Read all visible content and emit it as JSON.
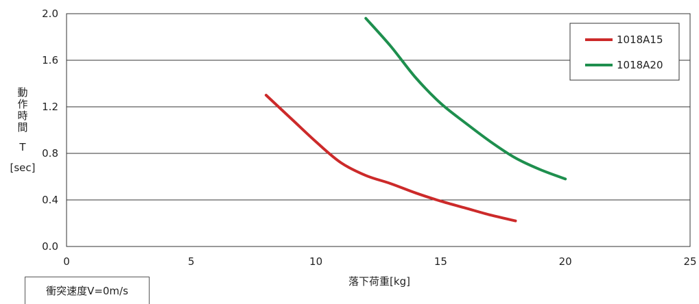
{
  "chart_data": {
    "type": "line",
    "title": "",
    "xlabel": "落下荷重[kg]",
    "ylabel_lines": [
      "動",
      "作",
      "時",
      "間",
      "T",
      "[sec]"
    ],
    "xlim": [
      0,
      25
    ],
    "ylim": [
      0,
      2.0
    ],
    "x_ticks": [
      "0",
      "5",
      "10",
      "15",
      "20",
      "25"
    ],
    "y_ticks": [
      "0.0",
      "0.4",
      "0.8",
      "1.2",
      "1.6",
      "2.0"
    ],
    "grid": "horizontal",
    "legend_position": "top-right",
    "series": [
      {
        "name": "1018A15",
        "color": "#cc2a2a",
        "points": [
          [
            8,
            1.3
          ],
          [
            9,
            1.1
          ],
          [
            10,
            0.9
          ],
          [
            11,
            0.72
          ],
          [
            12,
            0.61
          ],
          [
            13,
            0.54
          ],
          [
            14,
            0.46
          ],
          [
            15,
            0.39
          ],
          [
            16,
            0.33
          ],
          [
            17,
            0.27
          ],
          [
            18,
            0.22
          ]
        ]
      },
      {
        "name": "1018A20",
        "color": "#1e8f4e",
        "points": [
          [
            12,
            1.96
          ],
          [
            13,
            1.72
          ],
          [
            14,
            1.45
          ],
          [
            15,
            1.23
          ],
          [
            16,
            1.06
          ],
          [
            17,
            0.9
          ],
          [
            18,
            0.76
          ],
          [
            19,
            0.66
          ],
          [
            20,
            0.58
          ]
        ]
      }
    ]
  },
  "condition_label": "衝突速度V=0m/s"
}
